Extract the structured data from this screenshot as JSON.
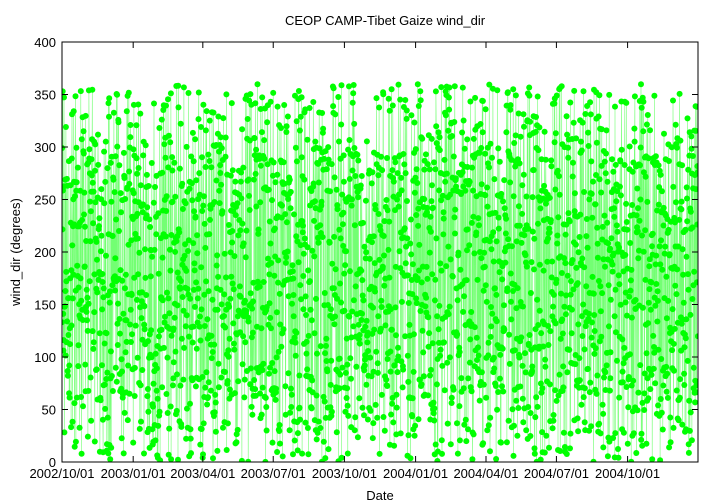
{
  "chart_data": {
    "type": "scatter",
    "title": "CEOP CAMP-Tibet Gaize  wind_dir",
    "xlabel": "Date",
    "ylabel": "wind_dir (degrees)",
    "ylim": [
      0,
      400
    ],
    "xlim": [
      "2002-10-01",
      "2004-12-31"
    ],
    "yticks": [
      0,
      50,
      100,
      150,
      200,
      250,
      300,
      350,
      400
    ],
    "xticks": [
      "2002/10/01",
      "2003/01/01",
      "2003/04/01",
      "2003/07/01",
      "2003/10/01",
      "2004/01/01",
      "2004/04/01",
      "2004/07/01",
      "2004/10/01"
    ],
    "grid": false,
    "legend": "none",
    "series": [
      {
        "color": "#00ff00",
        "marker": "circle",
        "line": "thin connecting line",
        "sampling": "hourly observations (dense)",
        "value_range": [
          0,
          360
        ],
        "note_from_figure": "values spread across the full 0-360 degree range throughout the period; gaps appear in the dense band near late Jan 2003, early Apr 2003 and mid Sep 2003"
      }
    ]
  }
}
